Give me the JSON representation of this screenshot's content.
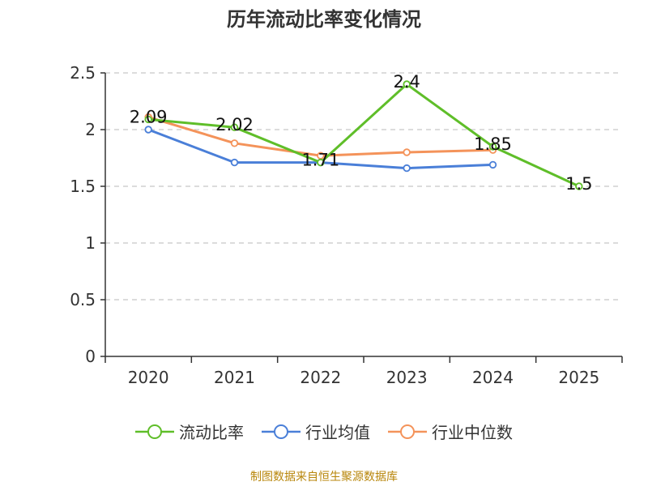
{
  "chart_data": {
    "type": "line",
    "title": "历年流动比率变化情况",
    "categories": [
      "2020",
      "2021",
      "2022",
      "2023",
      "2024",
      "2025"
    ],
    "ylim": [
      0,
      2.5
    ],
    "yticks": [
      "0",
      "0.5",
      "1",
      "1.5",
      "2",
      "2.5"
    ],
    "yticks_values": [
      0,
      0.5,
      1,
      1.5,
      2,
      2.5
    ],
    "grid": true,
    "legend_position": "bottom",
    "series": [
      {
        "name": "流动比率",
        "color": "#5fbe29",
        "values": [
          2.09,
          2.02,
          1.71,
          2.4,
          1.85,
          1.5
        ],
        "labels": [
          "2.09",
          "2.02",
          "1.71",
          "2.4",
          "1.85",
          "1.5"
        ]
      },
      {
        "name": "行业均值",
        "color": "#4a7fd8",
        "values": [
          2.0,
          1.71,
          1.71,
          1.66,
          1.69,
          null
        ]
      },
      {
        "name": "行业中位数",
        "color": "#f4935a",
        "values": [
          2.11,
          1.88,
          1.77,
          1.8,
          1.82,
          null
        ]
      }
    ]
  },
  "source": "制图数据来自恒生聚源数据库"
}
